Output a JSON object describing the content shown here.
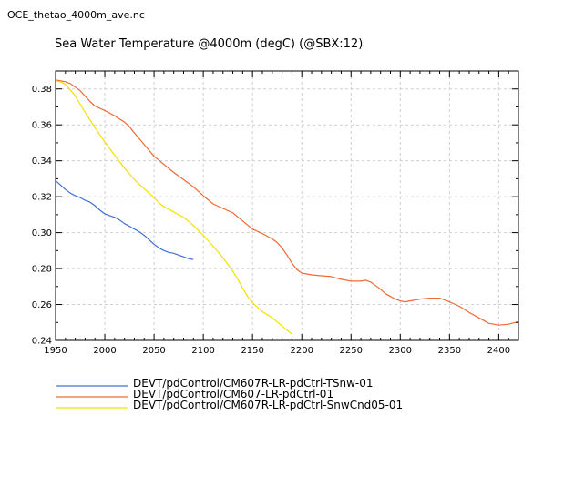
{
  "file_name": "OCE_thetao_4000m_ave.nc",
  "chart_data": {
    "type": "line",
    "title": "Sea Water Temperature @4000m (degC) (@SBX:12)",
    "xlabel": "",
    "ylabel": "",
    "xlim": [
      1950,
      2420
    ],
    "ylim": [
      0.24,
      0.39
    ],
    "x_ticks": [
      1950,
      2000,
      2050,
      2100,
      2150,
      2200,
      2250,
      2300,
      2350,
      2400
    ],
    "y_ticks": [
      0.24,
      0.26,
      0.28,
      0.3,
      0.32,
      0.34,
      0.36,
      0.38
    ],
    "y_tick_labels": [
      "0.24",
      "0.26",
      "0.28",
      "0.30",
      "0.32",
      "0.34",
      "0.36",
      "0.38"
    ],
    "grid": true,
    "legend_position": "bottom-left",
    "series": [
      {
        "name": "DEVT/pdControl/CM607R-LR-pdCtrl-TSnw-01",
        "color": "#3f6fd8",
        "x": [
          1950,
          1955,
          1960,
          1965,
          1970,
          1975,
          1980,
          1985,
          1990,
          1995,
          2000,
          2005,
          2010,
          2015,
          2020,
          2025,
          2030,
          2035,
          2040,
          2045,
          2050,
          2055,
          2060,
          2065,
          2070,
          2075,
          2080,
          2085,
          2090
        ],
        "y": [
          0.329,
          0.3265,
          0.324,
          0.322,
          0.3205,
          0.3195,
          0.318,
          0.317,
          0.315,
          0.3125,
          0.3105,
          0.3095,
          0.3085,
          0.307,
          0.305,
          0.3035,
          0.302,
          0.3005,
          0.2985,
          0.296,
          0.2935,
          0.2915,
          0.29,
          0.289,
          0.2885,
          0.2875,
          0.2865,
          0.2855,
          0.285
        ]
      },
      {
        "name": "DEVT/pdControl/CM607-LR-pdCtrl-01",
        "color": "#f06a32",
        "x": [
          1950,
          1955,
          1960,
          1965,
          1970,
          1975,
          1980,
          1985,
          1990,
          2000,
          2010,
          2020,
          2025,
          2030,
          2040,
          2050,
          2060,
          2070,
          2080,
          2090,
          2100,
          2110,
          2120,
          2130,
          2140,
          2150,
          2160,
          2170,
          2175,
          2180,
          2185,
          2190,
          2195,
          2200,
          2210,
          2220,
          2230,
          2240,
          2250,
          2255,
          2260,
          2265,
          2270,
          2275,
          2280,
          2285,
          2290,
          2295,
          2300,
          2305,
          2310,
          2320,
          2330,
          2340,
          2350,
          2360,
          2370,
          2380,
          2390,
          2395,
          2400,
          2410,
          2420
        ],
        "y": [
          0.385,
          0.3845,
          0.384,
          0.383,
          0.381,
          0.379,
          0.376,
          0.373,
          0.3705,
          0.368,
          0.365,
          0.3615,
          0.359,
          0.3555,
          0.349,
          0.3425,
          0.338,
          0.3335,
          0.3295,
          0.3255,
          0.3205,
          0.316,
          0.3135,
          0.311,
          0.3065,
          0.302,
          0.2995,
          0.2965,
          0.2945,
          0.2915,
          0.2875,
          0.283,
          0.2795,
          0.2775,
          0.2765,
          0.276,
          0.2755,
          0.274,
          0.273,
          0.273,
          0.273,
          0.2735,
          0.2725,
          0.2705,
          0.2685,
          0.266,
          0.2645,
          0.263,
          0.262,
          0.2615,
          0.262,
          0.263,
          0.2635,
          0.2635,
          0.2615,
          0.259,
          0.2555,
          0.2525,
          0.2495,
          0.249,
          0.2485,
          0.249,
          0.2505
        ]
      },
      {
        "name": "DEVT/pdControl/CM607R-LR-pdCtrl-SnwCnd05-01",
        "color": "#f4e000",
        "x": [
          1950,
          1955,
          1960,
          1965,
          1970,
          1975,
          1980,
          1990,
          2000,
          2010,
          2020,
          2030,
          2040,
          2050,
          2055,
          2060,
          2070,
          2080,
          2090,
          2100,
          2110,
          2120,
          2130,
          2135,
          2140,
          2145,
          2150,
          2160,
          2170,
          2180,
          2190
        ],
        "y": [
          0.3845,
          0.384,
          0.3825,
          0.3795,
          0.376,
          0.3715,
          0.367,
          0.3585,
          0.3505,
          0.343,
          0.336,
          0.3295,
          0.3245,
          0.3195,
          0.3165,
          0.3145,
          0.3115,
          0.3085,
          0.304,
          0.2985,
          0.2925,
          0.286,
          0.2785,
          0.274,
          0.269,
          0.2645,
          0.261,
          0.256,
          0.2525,
          0.248,
          0.2435
        ]
      }
    ]
  }
}
